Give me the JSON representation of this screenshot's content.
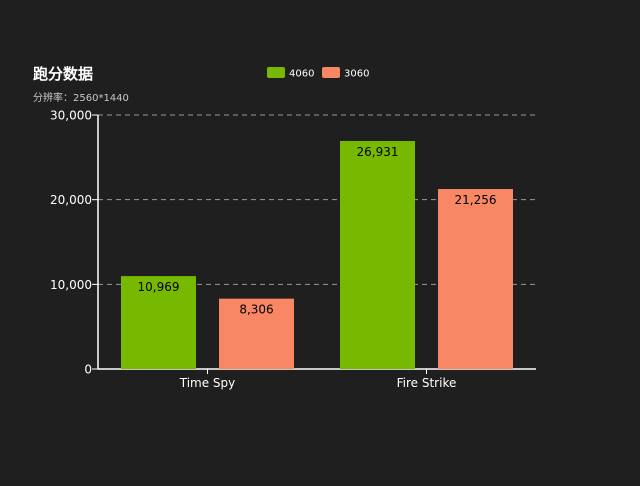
{
  "chart_data": {
    "type": "bar",
    "title": "跑分数据",
    "subtitle": "分辨率：2560*1440",
    "categories": [
      "Time Spy",
      "Fire Strike"
    ],
    "series": [
      {
        "name": "4060",
        "values": [
          10969,
          26931
        ],
        "labels": [
          "10,969",
          "26,931"
        ],
        "color": "#76b900"
      },
      {
        "name": "3060",
        "values": [
          8306,
          21256
        ],
        "labels": [
          "8,306",
          "21,256"
        ],
        "color": "#f78765"
      }
    ],
    "y_ticks": [
      0,
      10000,
      20000,
      30000
    ],
    "y_tick_labels": [
      "0",
      "10,000",
      "20,000",
      "30,000"
    ],
    "ylim": [
      0,
      30000
    ],
    "grid": true,
    "legend_position": "top-center",
    "colors": {
      "background": "#1f1f1f",
      "axis": "#ffffff",
      "grid": "#9a9a9a",
      "text": "#ffffff",
      "data_label": "#000000"
    }
  }
}
